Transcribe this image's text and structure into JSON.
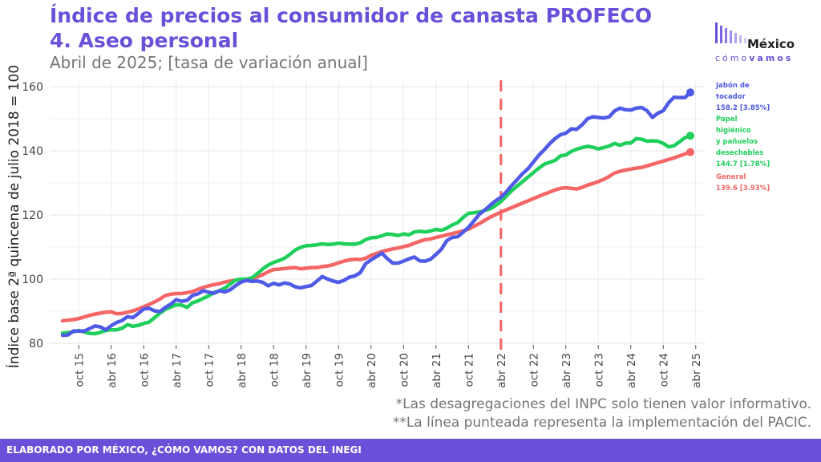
{
  "header": {
    "title_line1": "Índice de precios al consumidor de canasta PROFECO",
    "title_line2": "4. Aseo personal",
    "subtitle": "Abril de 2025; [tasa de variación anual]"
  },
  "logo": {
    "line1": "México",
    "line2_light": "cómo",
    "line2_bold": "vamos"
  },
  "notes": {
    "note1": "*Las desagregaciones del INPC solo tienen valor informativo.",
    "note2": "**La línea punteada representa la implementación del PACIC."
  },
  "footer": {
    "text": "ELABORADO POR MÉXICO, ¿CÓMO VAMOS? CON DATOS DEL INEGI"
  },
  "colors": {
    "accent": "#6a4fd8",
    "jabon": "#4f5ae6",
    "papel": "#1fcf5c",
    "general": "#f46565",
    "pacic": "#f46565"
  },
  "icons": {
    "logo": "bars-logo-icon"
  },
  "chart_data": {
    "type": "line",
    "ylabel": "Índice base 2ª quincena de julio 2018 = 100",
    "xlabel": "",
    "ylim": [
      78,
      163
    ],
    "yticks": [
      80,
      100,
      120,
      140,
      160
    ],
    "grid": true,
    "legend_placement": "right",
    "x_start": "jul 15",
    "x_end": "abr 25",
    "x_ticks": [
      {
        "label": "oct 15",
        "index": 3
      },
      {
        "label": "abr 16",
        "index": 9
      },
      {
        "label": "oct 16",
        "index": 15
      },
      {
        "label": "abr 17",
        "index": 21
      },
      {
        "label": "oct 17",
        "index": 27
      },
      {
        "label": "abr 18",
        "index": 33
      },
      {
        "label": "oct 18",
        "index": 39
      },
      {
        "label": "abr 19",
        "index": 45
      },
      {
        "label": "oct 19",
        "index": 51
      },
      {
        "label": "abr 20",
        "index": 57
      },
      {
        "label": "oct 20",
        "index": 63
      },
      {
        "label": "abr 21",
        "index": 69
      },
      {
        "label": "oct 21",
        "index": 75
      },
      {
        "label": "abr 22",
        "index": 81
      },
      {
        "label": "oct 22",
        "index": 87
      },
      {
        "label": "abr 23",
        "index": 93
      },
      {
        "label": "oct 23",
        "index": 99
      },
      {
        "label": "abr 24",
        "index": 105
      },
      {
        "label": "oct 24",
        "index": 111
      },
      {
        "label": "abr 25",
        "index": 117
      }
    ],
    "vline_index": 81,
    "series": [
      {
        "name": "Jabón de tocador",
        "color": "#4f5ae6",
        "label_lines": [
          "Jabón de",
          "tocador",
          "158.2 [3.85%]"
        ],
        "last": 158.2,
        "values": [
          82.5,
          82.6,
          83.8,
          83.8,
          83.8,
          84.6,
          85.4,
          85.1,
          84.2,
          85.5,
          86.5,
          87.1,
          88.3,
          88.0,
          89.3,
          90.7,
          90.9,
          90.1,
          89.9,
          91.2,
          92.2,
          93.6,
          93.1,
          93.4,
          94.9,
          95.4,
          96.4,
          95.9,
          95.6,
          96.4,
          96.0,
          96.7,
          98.0,
          99.1,
          99.6,
          99.3,
          99.4,
          99.0,
          97.9,
          98.7,
          98.2,
          98.8,
          98.5,
          97.6,
          97.3,
          97.7,
          98.0,
          99.4,
          100.8,
          100.0,
          99.4,
          99.0,
          99.6,
          100.6,
          101.0,
          102.0,
          104.8,
          106.0,
          107.0,
          108.1,
          106.4,
          105.0,
          105.0,
          105.6,
          106.3,
          106.9,
          105.7,
          105.6,
          106.2,
          107.7,
          109.3,
          112.0,
          113.0,
          113.2,
          114.6,
          116.1,
          118.1,
          120.2,
          121.5,
          123.0,
          124.4,
          125.5,
          127.2,
          129.2,
          131.0,
          132.9,
          134.4,
          136.5,
          138.6,
          140.3,
          142.2,
          143.8,
          145.0,
          145.5,
          146.8,
          146.7,
          148.1,
          150.0,
          150.6,
          150.4,
          150.2,
          150.6,
          152.4,
          153.3,
          152.8,
          152.7,
          153.3,
          153.5,
          152.5,
          150.4,
          151.7,
          152.5,
          155.0,
          156.7,
          156.6,
          156.6,
          158.2
        ]
      },
      {
        "name": "Papel higiénico y pañuelos desechables",
        "color": "#1fcf5c",
        "label_lines": [
          "Papel",
          "higiénico",
          "y pañuelos",
          "desechables",
          "144.7 [1.78%]"
        ],
        "last": 144.7,
        "values": [
          83.2,
          83.3,
          83.6,
          84.0,
          83.5,
          83.1,
          83.0,
          83.4,
          84.0,
          84.2,
          84.2,
          84.7,
          85.8,
          85.3,
          85.6,
          86.2,
          86.6,
          88.0,
          89.4,
          90.6,
          91.3,
          92.0,
          91.9,
          91.2,
          92.6,
          93.2,
          94.0,
          94.8,
          95.8,
          96.4,
          97.2,
          98.5,
          99.7,
          100.0,
          100.0,
          100.4,
          101.7,
          103.2,
          104.4,
          105.2,
          105.8,
          106.5,
          107.7,
          109.1,
          109.9,
          110.4,
          110.5,
          110.7,
          111.0,
          110.8,
          110.9,
          111.2,
          111.0,
          110.9,
          110.9,
          111.3,
          112.3,
          112.9,
          113.0,
          113.5,
          114.1,
          113.9,
          113.6,
          114.1,
          113.8,
          114.7,
          114.9,
          114.7,
          115.0,
          115.5,
          115.2,
          115.9,
          116.9,
          117.6,
          119.2,
          120.5,
          120.7,
          120.9,
          121.4,
          121.9,
          122.9,
          124.2,
          125.9,
          127.6,
          129.0,
          130.4,
          131.8,
          133.2,
          134.6,
          135.8,
          136.4,
          137.0,
          138.4,
          138.7,
          139.8,
          140.5,
          141.0,
          141.4,
          141.1,
          140.6,
          141.0,
          141.5,
          142.3,
          141.7,
          142.4,
          142.4,
          143.8,
          143.6,
          143.0,
          143.1,
          143.0,
          142.3,
          141.2,
          141.6,
          142.8,
          144.1,
          144.7
        ]
      },
      {
        "name": "General",
        "color": "#f46565",
        "label_lines": [
          "General",
          "139.6 [3.93%]"
        ],
        "last": 139.6,
        "values": [
          87.0,
          87.2,
          87.4,
          87.7,
          88.2,
          88.7,
          89.1,
          89.4,
          89.7,
          89.8,
          89.2,
          89.3,
          89.7,
          90.1,
          90.7,
          91.4,
          92.1,
          92.9,
          93.8,
          94.9,
          95.3,
          95.5,
          95.5,
          95.8,
          96.1,
          96.8,
          97.4,
          97.9,
          98.3,
          98.6,
          99.1,
          99.4,
          99.7,
          99.7,
          99.8,
          100.2,
          100.7,
          101.4,
          102.3,
          103.0,
          103.1,
          103.3,
          103.5,
          103.6,
          103.2,
          103.4,
          103.6,
          103.6,
          103.9,
          104.1,
          104.5,
          105.1,
          105.6,
          106.0,
          106.2,
          106.1,
          106.5,
          107.4,
          108.0,
          108.6,
          109.0,
          109.4,
          109.7,
          110.1,
          110.5,
          111.2,
          111.8,
          112.3,
          112.5,
          113.0,
          113.4,
          113.8,
          114.2,
          114.6,
          115.0,
          115.6,
          116.4,
          117.3,
          118.3,
          119.3,
          120.1,
          120.9,
          121.6,
          122.3,
          123.0,
          123.7,
          124.4,
          125.1,
          125.8,
          126.5,
          127.1,
          127.8,
          128.3,
          128.5,
          128.3,
          128.1,
          128.6,
          129.3,
          129.8,
          130.4,
          131.1,
          132.0,
          133.1,
          133.6,
          134.0,
          134.3,
          134.6,
          134.8,
          135.3,
          135.8,
          136.3,
          136.8,
          137.3,
          137.8,
          138.4,
          139.0,
          139.6
        ]
      }
    ]
  }
}
